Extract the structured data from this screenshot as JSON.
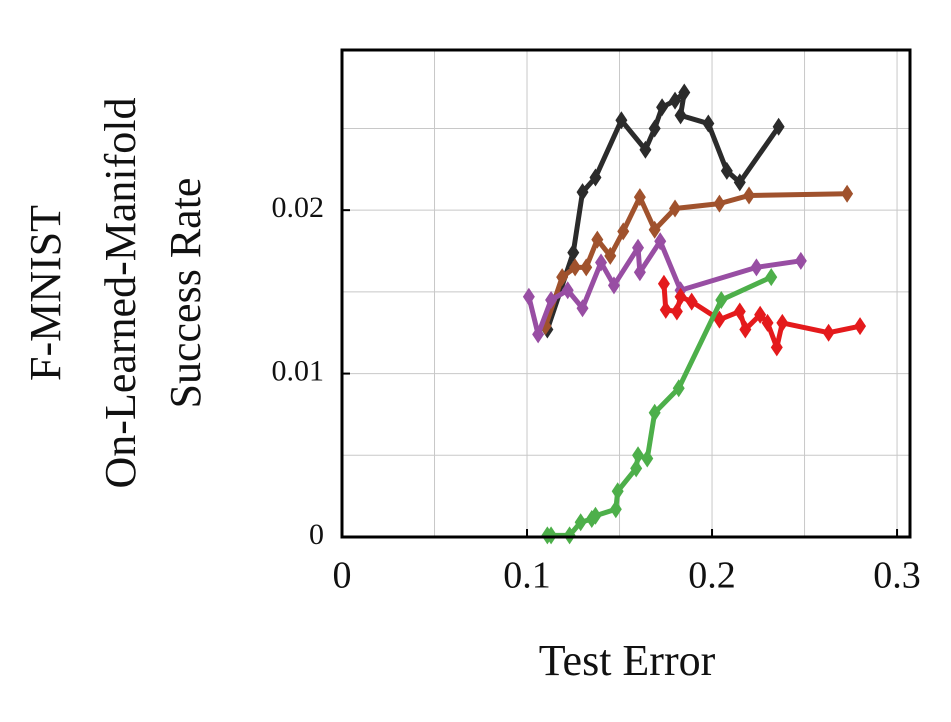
{
  "chart_data": {
    "type": "line",
    "xlabel": "Test Error",
    "ylabel": [
      "F-MNIST",
      "On-Learned-Manifold",
      "Success Rate"
    ],
    "xlim": [
      0,
      0.307
    ],
    "ylim": [
      0,
      0.0298
    ],
    "xticks": [
      0,
      0.1,
      0.2,
      0.3
    ],
    "yticks": [
      0,
      0.01,
      0.02
    ],
    "minor_xticks": [
      0.05,
      0.15,
      0.25
    ],
    "minor_yticks": [
      0.005,
      0.015,
      0.025
    ],
    "grid": true,
    "marker": "diamond",
    "series": [
      {
        "color": "#2b2b2b",
        "x": [
          0.111,
          0.125,
          0.13,
          0.137,
          0.151,
          0.164,
          0.169,
          0.173,
          0.18,
          0.185,
          0.183,
          0.198,
          0.208,
          0.215,
          0.236
        ],
        "values": [
          0.0127,
          0.0174,
          0.0211,
          0.022,
          0.0255,
          0.0237,
          0.025,
          0.0263,
          0.0267,
          0.0272,
          0.0258,
          0.0253,
          0.0224,
          0.0217,
          0.0251
        ]
      },
      {
        "color": "#a0522d",
        "x": [
          0.11,
          0.119,
          0.126,
          0.132,
          0.138,
          0.145,
          0.152,
          0.161,
          0.169,
          0.18,
          0.204,
          0.22,
          0.273
        ],
        "values": [
          0.0129,
          0.0159,
          0.0165,
          0.0165,
          0.0182,
          0.0172,
          0.0187,
          0.0208,
          0.0188,
          0.0201,
          0.0204,
          0.0209,
          0.021
        ]
      },
      {
        "color": "#984ea3",
        "x": [
          0.101,
          0.106,
          0.113,
          0.122,
          0.13,
          0.14,
          0.147,
          0.16,
          0.161,
          0.172,
          0.183,
          0.224,
          0.248
        ],
        "values": [
          0.0147,
          0.0124,
          0.0145,
          0.0151,
          0.014,
          0.0168,
          0.0154,
          0.0177,
          0.0162,
          0.0181,
          0.0151,
          0.0165,
          0.0169
        ]
      },
      {
        "color": "#e41a1c",
        "x": [
          0.174,
          0.175,
          0.181,
          0.183,
          0.189,
          0.204,
          0.215,
          0.218,
          0.226,
          0.23,
          0.235,
          0.238,
          0.263,
          0.28
        ],
        "values": [
          0.0155,
          0.0139,
          0.0138,
          0.0147,
          0.0144,
          0.0133,
          0.0138,
          0.0127,
          0.0136,
          0.0131,
          0.0116,
          0.0131,
          0.0125,
          0.0129
        ]
      },
      {
        "color": "#4daf4a",
        "x": [
          0.111,
          0.113,
          0.123,
          0.129,
          0.135,
          0.137,
          0.148,
          0.149,
          0.159,
          0.16,
          0.165,
          0.169,
          0.182,
          0.205,
          0.232
        ],
        "values": [
          0.0001,
          0.0001,
          0.0001,
          0.0009,
          0.0011,
          0.0013,
          0.0017,
          0.0028,
          0.0042,
          0.005,
          0.0048,
          0.0076,
          0.0091,
          0.0145,
          0.0159
        ]
      }
    ]
  }
}
